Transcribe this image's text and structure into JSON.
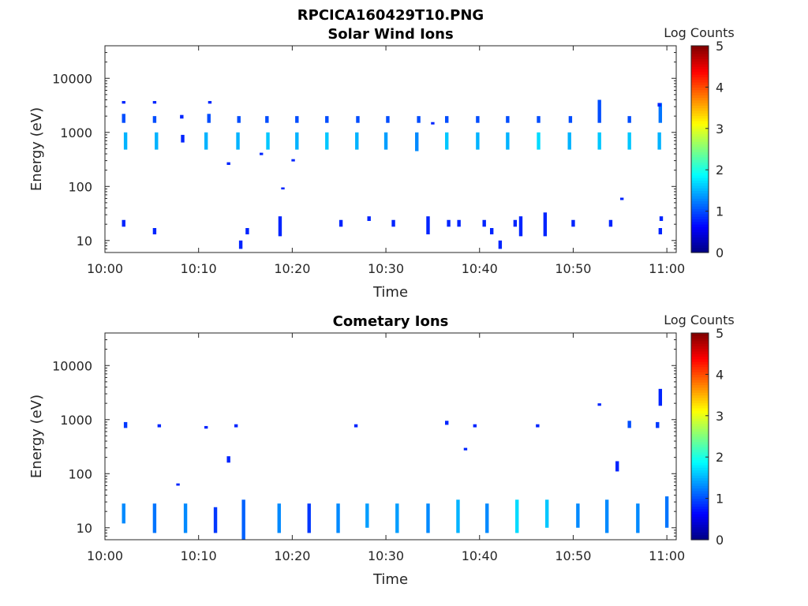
{
  "figure_title": "RPCICA160429T10.PNG",
  "chart_data": [
    {
      "type": "heatmap",
      "title": "Solar Wind Ions",
      "xlabel": "Time",
      "ylabel": "Energy (eV)",
      "y_scale": "log",
      "ylim": [
        6,
        40000
      ],
      "xlim": [
        "10:00",
        "11:01"
      ],
      "x_ticks": [
        "10:00",
        "10:10",
        "10:20",
        "10:30",
        "10:40",
        "10:50",
        "11:00"
      ],
      "y_ticks": [
        "10",
        "100",
        "1000",
        "10000"
      ],
      "colorbar": {
        "label": "Log Counts",
        "range": [
          0,
          5
        ],
        "ticks": [
          "0",
          "1",
          "2",
          "3",
          "4",
          "5"
        ],
        "colormap": "jet"
      },
      "bursts": [
        {
          "t": 2.2,
          "e": [
            480,
            1000
          ],
          "v": 1.5
        },
        {
          "t": 2.0,
          "e": [
            1500,
            2200
          ],
          "v": 1.0
        },
        {
          "t": 5.5,
          "e": [
            480,
            1000
          ],
          "v": 1.5
        },
        {
          "t": 5.3,
          "e": [
            1500,
            2000
          ],
          "v": 1.0
        },
        {
          "t": 10.8,
          "e": [
            480,
            1000
          ],
          "v": 1.5
        },
        {
          "t": 11.1,
          "e": [
            1500,
            2200
          ],
          "v": 1.0
        },
        {
          "t": 14.2,
          "e": [
            480,
            1000
          ],
          "v": 1.5
        },
        {
          "t": 14.3,
          "e": [
            1500,
            2000
          ],
          "v": 1.0
        },
        {
          "t": 17.4,
          "e": [
            480,
            1000
          ],
          "v": 1.6
        },
        {
          "t": 17.3,
          "e": [
            1500,
            2000
          ],
          "v": 1.0
        },
        {
          "t": 20.5,
          "e": [
            480,
            1000
          ],
          "v": 1.5
        },
        {
          "t": 20.5,
          "e": [
            1500,
            2000
          ],
          "v": 1.0
        },
        {
          "t": 23.7,
          "e": [
            480,
            1000
          ],
          "v": 1.6
        },
        {
          "t": 23.7,
          "e": [
            1500,
            2000
          ],
          "v": 1.0
        },
        {
          "t": 26.9,
          "e": [
            480,
            1000
          ],
          "v": 1.5
        },
        {
          "t": 27.0,
          "e": [
            1500,
            2000
          ],
          "v": 1.0
        },
        {
          "t": 30.0,
          "e": [
            480,
            1000
          ],
          "v": 1.4
        },
        {
          "t": 30.2,
          "e": [
            1500,
            2000
          ],
          "v": 1.0
        },
        {
          "t": 33.3,
          "e": [
            450,
            1000
          ],
          "v": 1.3
        },
        {
          "t": 33.5,
          "e": [
            1500,
            2000
          ],
          "v": 1.0
        },
        {
          "t": 36.5,
          "e": [
            480,
            1000
          ],
          "v": 1.6
        },
        {
          "t": 36.5,
          "e": [
            1500,
            2000
          ],
          "v": 1.0
        },
        {
          "t": 39.8,
          "e": [
            480,
            1000
          ],
          "v": 1.5
        },
        {
          "t": 39.8,
          "e": [
            1500,
            2000
          ],
          "v": 1.0
        },
        {
          "t": 43.0,
          "e": [
            480,
            1000
          ],
          "v": 1.5
        },
        {
          "t": 43.0,
          "e": [
            1500,
            2000
          ],
          "v": 1.0
        },
        {
          "t": 46.3,
          "e": [
            480,
            1000
          ],
          "v": 1.7
        },
        {
          "t": 46.3,
          "e": [
            1500,
            2000
          ],
          "v": 1.0
        },
        {
          "t": 49.6,
          "e": [
            480,
            1000
          ],
          "v": 1.5
        },
        {
          "t": 49.7,
          "e": [
            1500,
            2000
          ],
          "v": 1.0
        },
        {
          "t": 52.8,
          "e": [
            480,
            1000
          ],
          "v": 1.6
        },
        {
          "t": 52.8,
          "e": [
            1500,
            4000
          ],
          "v": 1.0
        },
        {
          "t": 56.0,
          "e": [
            480,
            1000
          ],
          "v": 1.6
        },
        {
          "t": 56.0,
          "e": [
            1500,
            2000
          ],
          "v": 1.0
        },
        {
          "t": 59.2,
          "e": [
            480,
            1000
          ],
          "v": 1.5
        },
        {
          "t": 59.3,
          "e": [
            1500,
            3500
          ],
          "v": 1.2
        },
        {
          "t": 2.0,
          "e": [
            18,
            24
          ],
          "v": 0.8
        },
        {
          "t": 5.3,
          "e": [
            13,
            17
          ],
          "v": 0.8
        },
        {
          "t": 14.5,
          "e": [
            7,
            10
          ],
          "v": 0.8
        },
        {
          "t": 15.2,
          "e": [
            13,
            17
          ],
          "v": 0.8
        },
        {
          "t": 18.7,
          "e": [
            12,
            28
          ],
          "v": 0.8
        },
        {
          "t": 25.2,
          "e": [
            18,
            24
          ],
          "v": 0.8
        },
        {
          "t": 28.2,
          "e": [
            23,
            28
          ],
          "v": 0.8
        },
        {
          "t": 30.8,
          "e": [
            18,
            24
          ],
          "v": 0.8
        },
        {
          "t": 34.5,
          "e": [
            13,
            28
          ],
          "v": 0.8
        },
        {
          "t": 36.7,
          "e": [
            18,
            24
          ],
          "v": 0.8
        },
        {
          "t": 37.8,
          "e": [
            18,
            24
          ],
          "v": 0.8
        },
        {
          "t": 40.5,
          "e": [
            18,
            24
          ],
          "v": 0.8
        },
        {
          "t": 41.3,
          "e": [
            13,
            17
          ],
          "v": 0.8
        },
        {
          "t": 42.2,
          "e": [
            7,
            10
          ],
          "v": 0.8
        },
        {
          "t": 43.8,
          "e": [
            18,
            24
          ],
          "v": 0.8
        },
        {
          "t": 44.4,
          "e": [
            12,
            28
          ],
          "v": 0.8
        },
        {
          "t": 47.0,
          "e": [
            12,
            33
          ],
          "v": 0.8
        },
        {
          "t": 50.0,
          "e": [
            18,
            24
          ],
          "v": 0.8
        },
        {
          "t": 54.0,
          "e": [
            18,
            24
          ],
          "v": 0.8
        },
        {
          "t": 59.3,
          "e": [
            13,
            17
          ],
          "v": 0.8
        },
        {
          "t": 59.4,
          "e": [
            23,
            28
          ],
          "v": 0.8
        },
        {
          "t": 2.0,
          "e": [
            3400,
            3800
          ],
          "v": 0.8
        },
        {
          "t": 5.3,
          "e": [
            3400,
            3800
          ],
          "v": 0.8
        },
        {
          "t": 11.2,
          "e": [
            3400,
            3800
          ],
          "v": 0.8
        },
        {
          "t": 8.2,
          "e": [
            1800,
            2100
          ],
          "v": 0.8
        },
        {
          "t": 13.2,
          "e": [
            250,
            280
          ],
          "v": 0.8
        },
        {
          "t": 16.7,
          "e": [
            380,
            420
          ],
          "v": 0.8
        },
        {
          "t": 19.0,
          "e": [
            88,
            96
          ],
          "v": 0.8
        },
        {
          "t": 20.1,
          "e": [
            290,
            320
          ],
          "v": 0.8
        },
        {
          "t": 35.0,
          "e": [
            1400,
            1550
          ],
          "v": 0.8
        },
        {
          "t": 55.2,
          "e": [
            56,
            62
          ],
          "v": 0.8
        },
        {
          "t": 59.2,
          "e": [
            3000,
            3500
          ],
          "v": 0.8
        },
        {
          "t": 8.3,
          "e": [
            650,
            900
          ],
          "v": 0.8
        }
      ]
    },
    {
      "type": "heatmap",
      "title": "Cometary Ions",
      "xlabel": "Time",
      "ylabel": "Energy (eV)",
      "y_scale": "log",
      "ylim": [
        6,
        40000
      ],
      "xlim": [
        "10:00",
        "11:01"
      ],
      "x_ticks": [
        "10:00",
        "10:10",
        "10:20",
        "10:30",
        "10:40",
        "10:50",
        "11:00"
      ],
      "y_ticks": [
        "10",
        "100",
        "1000",
        "10000"
      ],
      "colorbar": {
        "label": "Log Counts",
        "range": [
          0,
          5
        ],
        "ticks": [
          "0",
          "1",
          "2",
          "3",
          "4",
          "5"
        ],
        "colormap": "jet"
      },
      "bursts": [
        {
          "t": 2.0,
          "e": [
            12,
            28
          ],
          "v": 1.3
        },
        {
          "t": 5.3,
          "e": [
            8,
            28
          ],
          "v": 1.2
        },
        {
          "t": 8.6,
          "e": [
            8,
            28
          ],
          "v": 1.3
        },
        {
          "t": 11.8,
          "e": [
            8,
            24
          ],
          "v": 0.9
        },
        {
          "t": 14.8,
          "e": [
            6,
            33
          ],
          "v": 1.1
        },
        {
          "t": 18.6,
          "e": [
            8,
            28
          ],
          "v": 1.3
        },
        {
          "t": 21.8,
          "e": [
            8,
            28
          ],
          "v": 0.9
        },
        {
          "t": 24.9,
          "e": [
            8,
            28
          ],
          "v": 1.3
        },
        {
          "t": 28.0,
          "e": [
            10,
            28
          ],
          "v": 1.4
        },
        {
          "t": 31.2,
          "e": [
            8,
            28
          ],
          "v": 1.4
        },
        {
          "t": 34.5,
          "e": [
            8,
            28
          ],
          "v": 1.3
        },
        {
          "t": 37.7,
          "e": [
            8,
            33
          ],
          "v": 1.5
        },
        {
          "t": 40.8,
          "e": [
            8,
            28
          ],
          "v": 1.3
        },
        {
          "t": 44.0,
          "e": [
            8,
            33
          ],
          "v": 1.7
        },
        {
          "t": 47.2,
          "e": [
            10,
            33
          ],
          "v": 1.6
        },
        {
          "t": 50.5,
          "e": [
            10,
            28
          ],
          "v": 1.3
        },
        {
          "t": 53.6,
          "e": [
            8,
            33
          ],
          "v": 1.3
        },
        {
          "t": 56.9,
          "e": [
            8,
            28
          ],
          "v": 1.3
        },
        {
          "t": 60.0,
          "e": [
            10,
            38
          ],
          "v": 1.2
        },
        {
          "t": 2.2,
          "e": [
            700,
            900
          ],
          "v": 0.9
        },
        {
          "t": 5.8,
          "e": [
            720,
            820
          ],
          "v": 0.8
        },
        {
          "t": 7.8,
          "e": [
            60,
            66
          ],
          "v": 0.8
        },
        {
          "t": 10.8,
          "e": [
            680,
            760
          ],
          "v": 0.8
        },
        {
          "t": 13.2,
          "e": [
            160,
            210
          ],
          "v": 0.8
        },
        {
          "t": 14.0,
          "e": [
            720,
            820
          ],
          "v": 0.8
        },
        {
          "t": 26.8,
          "e": [
            720,
            820
          ],
          "v": 0.8
        },
        {
          "t": 36.5,
          "e": [
            800,
            950
          ],
          "v": 0.8
        },
        {
          "t": 38.5,
          "e": [
            270,
            300
          ],
          "v": 0.8
        },
        {
          "t": 39.5,
          "e": [
            720,
            820
          ],
          "v": 0.8
        },
        {
          "t": 46.2,
          "e": [
            720,
            820
          ],
          "v": 0.8
        },
        {
          "t": 52.8,
          "e": [
            1800,
            2000
          ],
          "v": 0.8
        },
        {
          "t": 54.7,
          "e": [
            110,
            170
          ],
          "v": 0.8
        },
        {
          "t": 56.0,
          "e": [
            700,
            950
          ],
          "v": 1.0
        },
        {
          "t": 59.0,
          "e": [
            700,
            900
          ],
          "v": 0.9
        },
        {
          "t": 59.3,
          "e": [
            1800,
            3700
          ],
          "v": 0.8
        }
      ]
    }
  ]
}
